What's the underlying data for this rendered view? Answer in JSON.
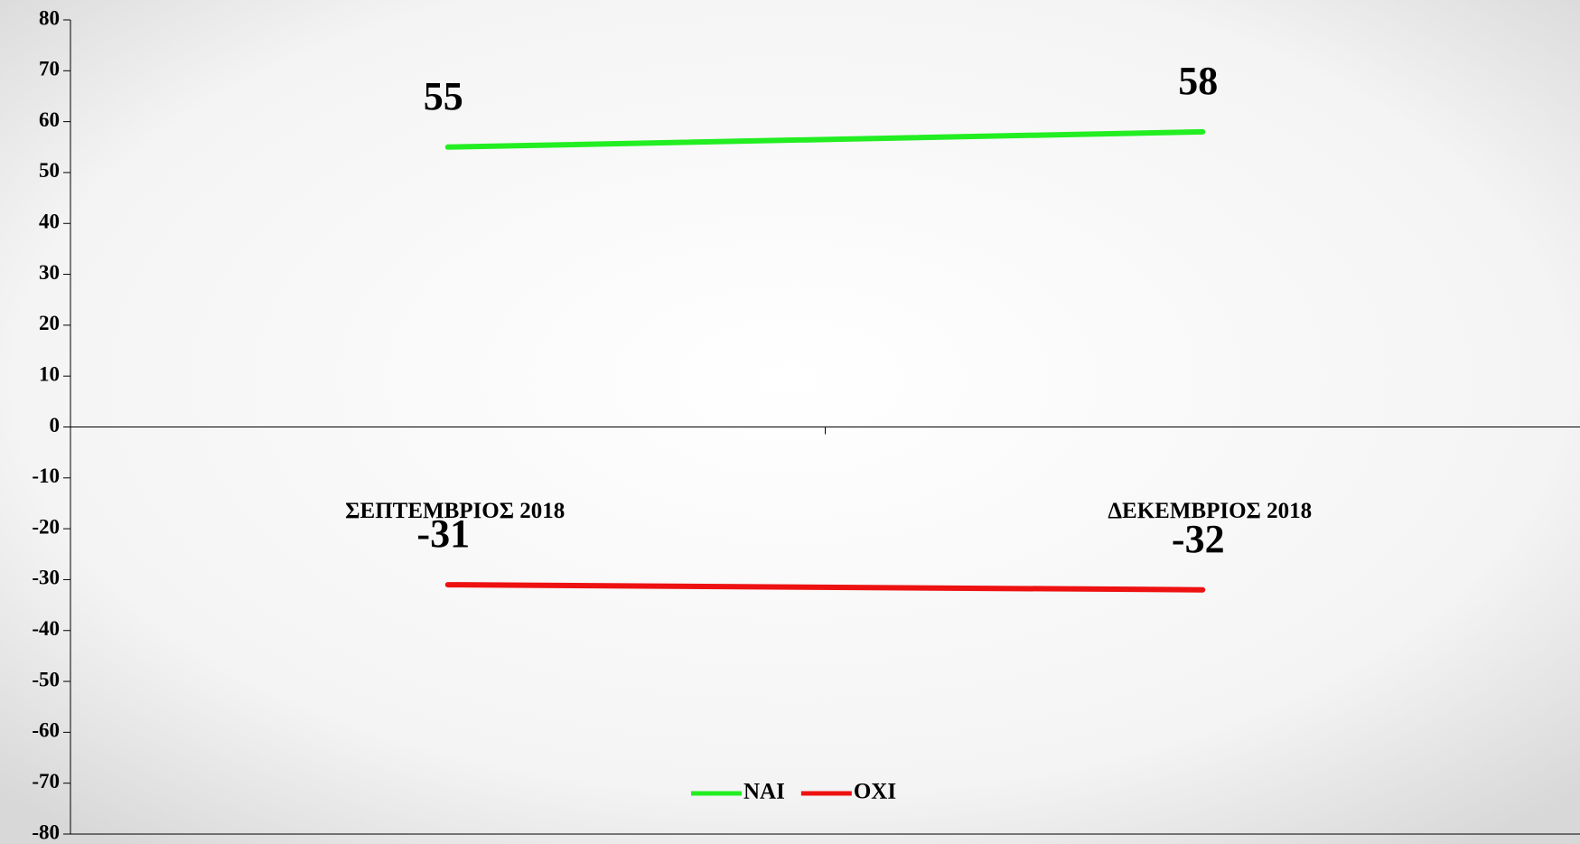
{
  "chart_data": {
    "type": "line",
    "categories": [
      "ΣΕΠΤΕΜΒΡΙΟΣ 2018",
      "ΔΕΚΕΜΒΡΙΟΣ 2018"
    ],
    "series": [
      {
        "name": "ΝΑΙ",
        "color": "#22ee22",
        "values": [
          55,
          58
        ]
      },
      {
        "name": "ΟΧΙ",
        "color": "#ee1111",
        "values": [
          -31,
          -32
        ]
      }
    ],
    "ylim": [
      -80,
      80
    ],
    "yticks": [
      -80,
      -70,
      -60,
      -50,
      -40,
      -30,
      -20,
      -10,
      0,
      10,
      20,
      30,
      40,
      50,
      60,
      70,
      80
    ],
    "legend": "bottom"
  }
}
